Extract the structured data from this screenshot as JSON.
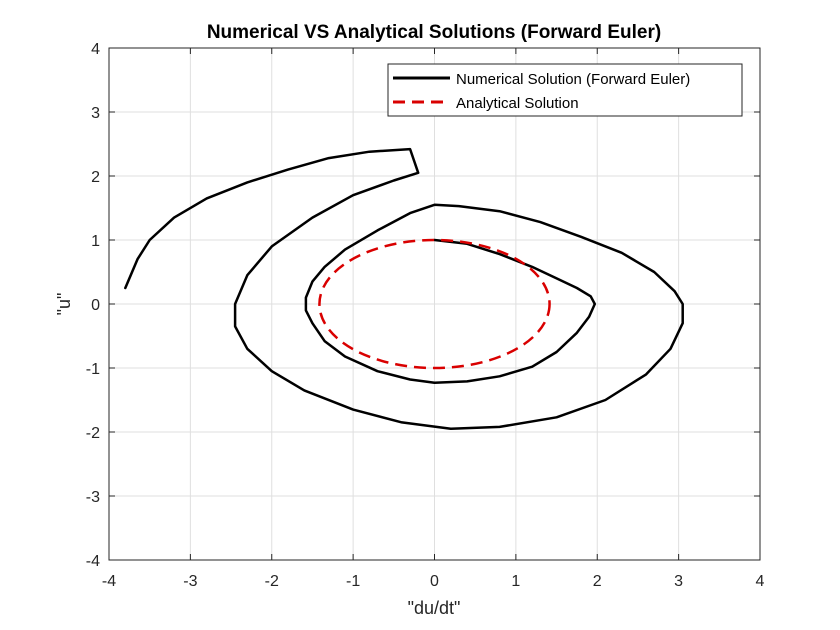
{
  "chart_data": {
    "type": "line",
    "title": "Numerical VS Analytical Solutions (Forward Euler)",
    "xlabel": "\"du/dt\"",
    "ylabel": "\"u\"",
    "xlim": [
      -4,
      4
    ],
    "ylim": [
      -4,
      4
    ],
    "xticks": [
      "-4",
      "-3",
      "-2",
      "-1",
      "0",
      "1",
      "2",
      "3",
      "4"
    ],
    "yticks": [
      "-4",
      "-3",
      "-2",
      "-1",
      "0",
      "1",
      "2",
      "3",
      "4"
    ],
    "grid": true,
    "legend_position": "top-right",
    "series": [
      {
        "name": "Numerical Solution (Forward Euler)",
        "color": "#000000",
        "style": "solid",
        "points": [
          [
            0,
            1
          ],
          [
            0.4,
            0.94
          ],
          [
            0.8,
            0.78
          ],
          [
            1.2,
            0.58
          ],
          [
            1.5,
            0.4
          ],
          [
            1.75,
            0.25
          ],
          [
            1.92,
            0.12
          ],
          [
            1.97,
            0.0
          ],
          [
            1.9,
            -0.2
          ],
          [
            1.75,
            -0.45
          ],
          [
            1.5,
            -0.75
          ],
          [
            1.2,
            -0.98
          ],
          [
            0.8,
            -1.13
          ],
          [
            0.4,
            -1.21
          ],
          [
            0,
            -1.23
          ],
          [
            -0.3,
            -1.18
          ],
          [
            -0.7,
            -1.05
          ],
          [
            -1.1,
            -0.82
          ],
          [
            -1.35,
            -0.58
          ],
          [
            -1.5,
            -0.3
          ],
          [
            -1.58,
            -0.1
          ],
          [
            -1.58,
            0.1
          ],
          [
            -1.5,
            0.35
          ],
          [
            -1.35,
            0.58
          ],
          [
            -1.1,
            0.85
          ],
          [
            -0.7,
            1.15
          ],
          [
            -0.3,
            1.42
          ],
          [
            0,
            1.55
          ],
          [
            0.3,
            1.53
          ],
          [
            0.8,
            1.45
          ],
          [
            1.3,
            1.28
          ],
          [
            1.8,
            1.05
          ],
          [
            2.3,
            0.8
          ],
          [
            2.7,
            0.5
          ],
          [
            2.95,
            0.2
          ],
          [
            3.05,
            0.0
          ],
          [
            3.05,
            -0.3
          ],
          [
            2.9,
            -0.7
          ],
          [
            2.6,
            -1.1
          ],
          [
            2.1,
            -1.5
          ],
          [
            1.5,
            -1.77
          ],
          [
            0.8,
            -1.92
          ],
          [
            0.2,
            -1.95
          ],
          [
            -0.4,
            -1.85
          ],
          [
            -1.0,
            -1.65
          ],
          [
            -1.6,
            -1.35
          ],
          [
            -2.0,
            -1.05
          ],
          [
            -2.3,
            -0.7
          ],
          [
            -2.45,
            -0.35
          ],
          [
            -2.45,
            0.0
          ],
          [
            -2.3,
            0.45
          ],
          [
            -2.0,
            0.9
          ],
          [
            -1.5,
            1.35
          ],
          [
            -1.0,
            1.7
          ],
          [
            -0.5,
            1.93
          ],
          [
            -0.2,
            2.05
          ],
          [
            -0.3,
            2.42
          ],
          [
            -0.8,
            2.38
          ],
          [
            -1.3,
            2.28
          ],
          [
            -1.8,
            2.1
          ],
          [
            -2.3,
            1.9
          ],
          [
            -2.8,
            1.65
          ],
          [
            -3.2,
            1.35
          ],
          [
            -3.5,
            1.0
          ],
          [
            -3.65,
            0.7
          ],
          [
            -3.8,
            0.25
          ]
        ]
      },
      {
        "name": "Analytical Solution",
        "color": "#d90000",
        "style": "dashed",
        "shape": "ellipse",
        "center": [
          0,
          0
        ],
        "x_radius": 1.414,
        "y_radius": 1.0
      }
    ]
  }
}
